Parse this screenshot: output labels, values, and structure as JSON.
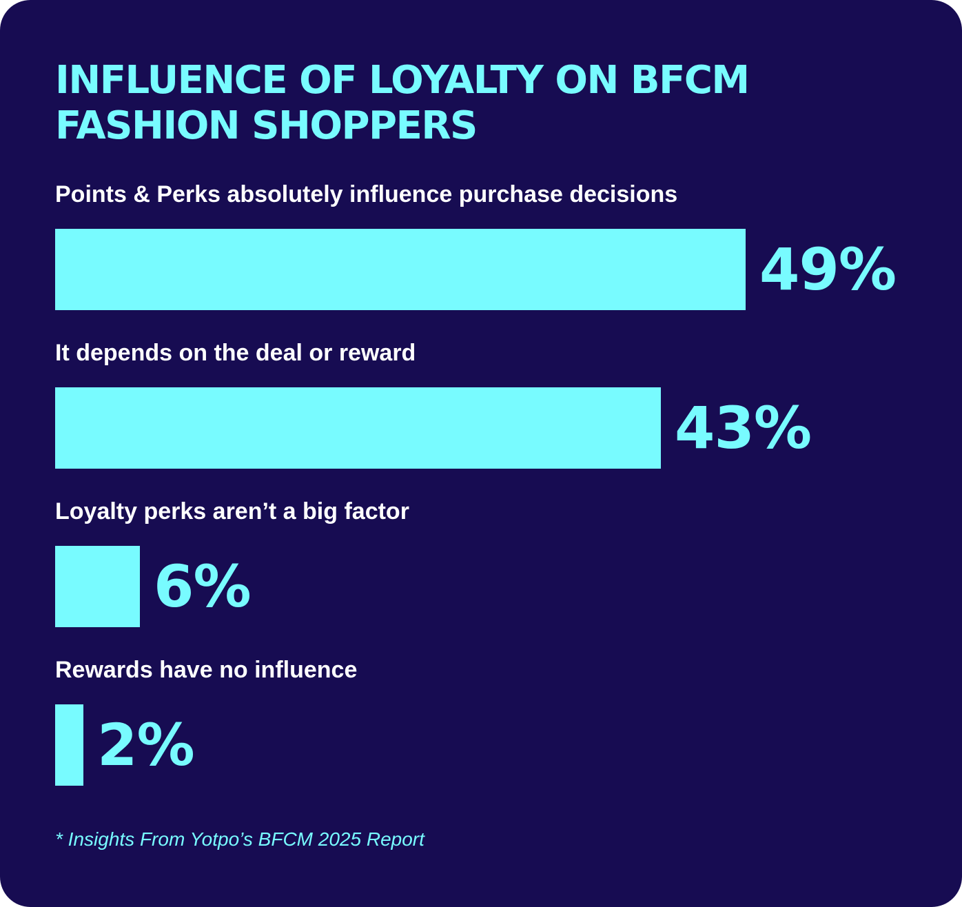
{
  "colors": {
    "background": "#170c52",
    "accent": "#78fbff",
    "label_text": "#ffffff"
  },
  "chart_data": {
    "type": "bar",
    "orientation": "horizontal",
    "title_lines": [
      "INFLUENCE OF LOYALTY ON BFCM",
      "FASHION SHOPPERS"
    ],
    "categories": [
      "Points & Perks absolutely influence purchase decisions",
      "It depends on the deal or reward",
      "Loyalty perks aren’t a big factor",
      "Rewards have no influence"
    ],
    "values": [
      49,
      43,
      6,
      2
    ],
    "value_labels": [
      "49%",
      "43%",
      "6%",
      "2%"
    ],
    "unit": "%",
    "grid": false,
    "legend": "none"
  },
  "footnote": "* Insights From Yotpo’s BFCM 2025 Report"
}
